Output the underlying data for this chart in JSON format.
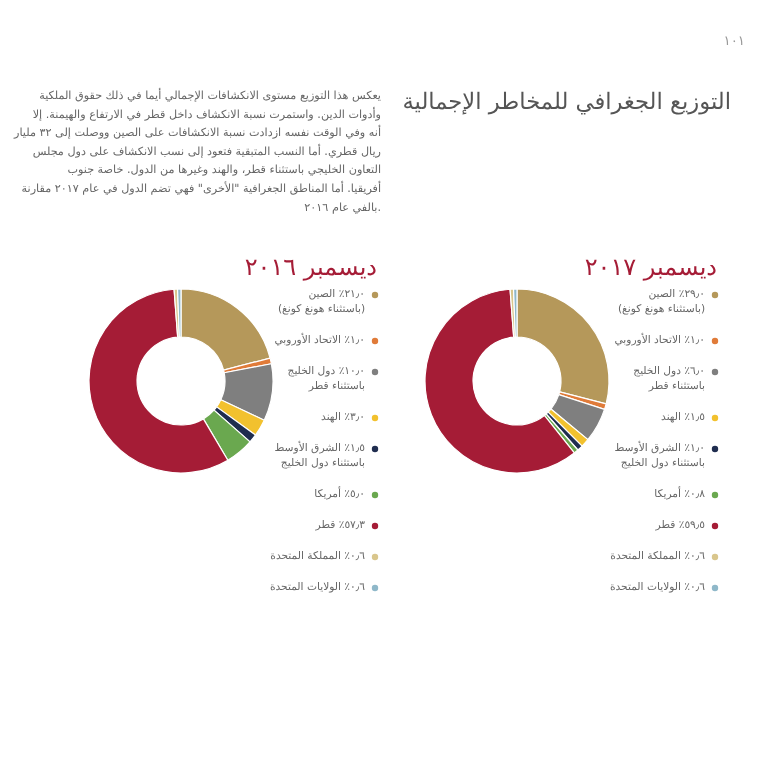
{
  "chart_data": [
    {
      "type": "donut",
      "title": "التوزيع الجغرافي للمخاطر الإجمالية",
      "subtitle": "ديسمبر ٢٠١٧",
      "legend": "right",
      "annotations": [
        "١٠١",
        "يعكس هذا التوزيع مستوى الانكشافات الإجمالي أيما في ذلك حقوق الملكية\nوأدوات الدين. واستمرت نسبة الانكشاف داخل قطر في الارتفاع والهيمنة. إلا\nأنه وفي الوقت نفسه ازدادت نسبة الانكشافات على الصين ووصلت إلى ٣٢ مليار\nريال قطري. أما النسب المتبقية فتعود إلى نسب الانكشاف على دول مجلس\nالتعاون الخليجي باستثناء قطر، والهند وغيرها من الدول. خاصة جنوب\nأفريقيا. أما المناطق الجغرافية \"الأخرى\" فهي تضم الدول في عام ٢٠١٧ مقارنة\nبالفي عام ٢٠١٦."
      ],
      "categories": [
        "٢٩٫٠٪ الصين\n(باستثناء هونغ كونغ)",
        "١٫٠٪ الاتحاد الأوروبي",
        "٦٫٠٪ دول الخليج\nباستثناء قطر",
        "١٫٥٪ الهند",
        "١٫٠٪ الشرق الأوسط\nباستثناء دول الخليج",
        "٠٫٨٪ أمريكا",
        "٥٩٫٥٪ قطر",
        "٠٫٦٪ المملكة المتحدة",
        "٠٫٦٪ الولايات المتحدة"
      ],
      "values": [
        29.0,
        1.0,
        6.0,
        1.5,
        1.0,
        0.8,
        59.5,
        0.6,
        0.6
      ],
      "colors": [
        "#b5985a",
        "#e07b39",
        "#7f7f7f",
        "#f2c12e",
        "#1f2d4f",
        "#6aa84f",
        "#a51c36",
        "#d9c68c",
        "#8fb8c9"
      ]
    },
    {
      "type": "donut",
      "subtitle": "ديسمبر ٢٠١٦",
      "legend": "right",
      "categories": [
        "٢١٫٠٪ الصين\n(باستثناء هونغ كونغ)",
        "١٫٠٪ الاتحاد الأوروبي",
        "١٠٫٠٪ دول الخليج\nباستثناء قطر",
        "٣٫٠٪ الهند",
        "١٫٥٪ الشرق الأوسط\nباستثناء دول الخليج",
        "٥٫٠٪ أمريكا",
        "٥٧٫٣٪ قطر",
        "٠٫٦٪ المملكة المتحدة",
        "٠٫٦٪ الولايات المتحدة"
      ],
      "values": [
        21.0,
        1.0,
        10.0,
        3.0,
        1.5,
        5.0,
        57.3,
        0.6,
        0.6
      ],
      "colors": [
        "#b5985a",
        "#e07b39",
        "#7f7f7f",
        "#f2c12e",
        "#1f2d4f",
        "#6aa84f",
        "#a51c36",
        "#d9c68c",
        "#8fb8c9"
      ]
    }
  ]
}
